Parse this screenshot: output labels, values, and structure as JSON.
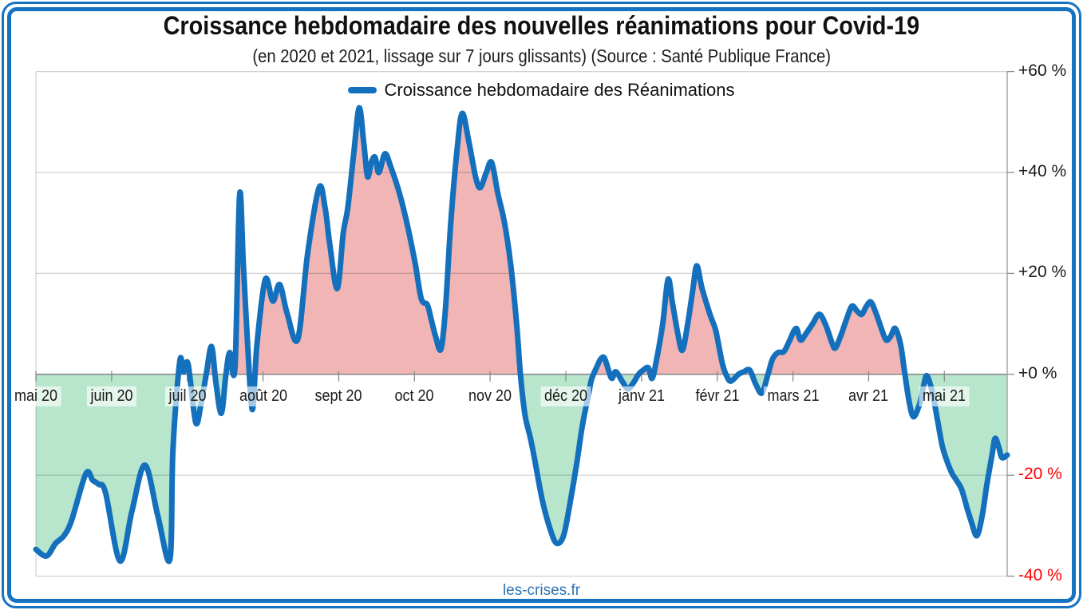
{
  "chart": {
    "title": "Croissance hebdomadaire des nouvelles réanimations pour Covid-19",
    "subtitle": "(en 2020 et 2021, lissage sur 7 jours glissants) (Source : Santé Publique France)",
    "legend_label": "Croissance hebdomadaire des Réanimations",
    "footer": "les-crises.fr"
  },
  "colors": {
    "line": "#1470BC",
    "fill_above_zero": "#F0B5B4",
    "fill_below_zero": "#B7E6CD",
    "frame_blue": "#1573C2",
    "negative_tick_label": "#FF0000",
    "positive_tick_label": "#1a1a1a",
    "footer_text": "#2E74B5"
  },
  "chart_data": {
    "type": "line",
    "title": "Croissance hebdomadaire des nouvelles réanimations pour Covid-19",
    "subtitle": "(en 2020 et 2021, lissage sur 7 jours glissants) (Source : Santé Publique France)",
    "x_unit": "months since 2020-05-01",
    "xlim": [
      0,
      12.83
    ],
    "ylim": [
      -40,
      60
    ],
    "grid": true,
    "legend_position": "top-center",
    "x_tick_labels": [
      "mai 20",
      "juin 20",
      "juil 20",
      "août 20",
      "sept 20",
      "oct 20",
      "nov 20",
      "déc 20",
      "janv 21",
      "févr 21",
      "mars 21",
      "avr 21",
      "mai 21"
    ],
    "y_ticks": [
      {
        "value": 60,
        "label": "+60 %"
      },
      {
        "value": 40,
        "label": "+40 %"
      },
      {
        "value": 20,
        "label": "+20 %"
      },
      {
        "value": 0,
        "label": "+0 %"
      },
      {
        "value": -20,
        "label": "-20 %"
      },
      {
        "value": -40,
        "label": "-40 %"
      }
    ],
    "series": [
      {
        "name": "Croissance hebdomadaire des Réanimations",
        "unit": "percent",
        "points": [
          [
            0,
            -34.7
          ],
          [
            0.14,
            -36
          ],
          [
            0.26,
            -33.5
          ],
          [
            0.37,
            -32
          ],
          [
            0.47,
            -29
          ],
          [
            0.66,
            -19.7
          ],
          [
            0.75,
            -21
          ],
          [
            0.83,
            -21.8
          ],
          [
            0.92,
            -23.5
          ],
          [
            1.11,
            -37
          ],
          [
            1.27,
            -27
          ],
          [
            1.44,
            -18
          ],
          [
            1.61,
            -28
          ],
          [
            1.77,
            -36.7
          ],
          [
            1.81,
            -15
          ],
          [
            1.9,
            2.5
          ],
          [
            1.95,
            0.5
          ],
          [
            2.01,
            2
          ],
          [
            2.11,
            -9.5
          ],
          [
            2.18,
            -6
          ],
          [
            2.25,
            0
          ],
          [
            2.32,
            5.5
          ],
          [
            2.38,
            -2
          ],
          [
            2.45,
            -7.7
          ],
          [
            2.51,
            0
          ],
          [
            2.56,
            4.3
          ],
          [
            2.63,
            1.5
          ],
          [
            2.69,
            35.5
          ],
          [
            2.74,
            22
          ],
          [
            2.8,
            5
          ],
          [
            2.86,
            -7
          ],
          [
            2.92,
            6
          ],
          [
            3.03,
            18.8
          ],
          [
            3.13,
            14.5
          ],
          [
            3.22,
            17.8
          ],
          [
            3.32,
            12
          ],
          [
            3.46,
            7
          ],
          [
            3.59,
            24
          ],
          [
            3.74,
            37
          ],
          [
            3.82,
            33
          ],
          [
            3.88,
            26
          ],
          [
            3.98,
            17
          ],
          [
            4.06,
            28
          ],
          [
            4.12,
            33
          ],
          [
            4.2,
            44
          ],
          [
            4.27,
            52.8
          ],
          [
            4.33,
            46
          ],
          [
            4.38,
            39.2
          ],
          [
            4.43,
            42
          ],
          [
            4.48,
            43
          ],
          [
            4.53,
            40
          ],
          [
            4.61,
            43.7
          ],
          [
            4.69,
            41
          ],
          [
            4.8,
            36
          ],
          [
            4.9,
            30
          ],
          [
            5.01,
            22
          ],
          [
            5.09,
            15
          ],
          [
            5.17,
            13.8
          ],
          [
            5.22,
            11
          ],
          [
            5.28,
            7.5
          ],
          [
            5.35,
            5
          ],
          [
            5.41,
            13
          ],
          [
            5.48,
            30
          ],
          [
            5.56,
            44
          ],
          [
            5.63,
            51.7
          ],
          [
            5.72,
            46
          ],
          [
            5.81,
            39
          ],
          [
            5.87,
            37
          ],
          [
            5.95,
            40
          ],
          [
            6.02,
            42
          ],
          [
            6.1,
            36
          ],
          [
            6.19,
            30
          ],
          [
            6.27,
            22
          ],
          [
            6.35,
            10
          ],
          [
            6.4,
            0
          ],
          [
            6.46,
            -8
          ],
          [
            6.53,
            -12.5
          ],
          [
            6.59,
            -17
          ],
          [
            6.69,
            -25
          ],
          [
            6.8,
            -31
          ],
          [
            6.88,
            -33.5
          ],
          [
            6.97,
            -32
          ],
          [
            7.05,
            -26
          ],
          [
            7.14,
            -18
          ],
          [
            7.22,
            -10
          ],
          [
            7.3,
            -4
          ],
          [
            7.34,
            -1
          ],
          [
            7.41,
            1.5
          ],
          [
            7.46,
            3
          ],
          [
            7.51,
            3.2
          ],
          [
            7.57,
            0.5
          ],
          [
            7.61,
            -0.8
          ],
          [
            7.66,
            0.5
          ],
          [
            7.75,
            -1.5
          ],
          [
            7.82,
            -2.9
          ],
          [
            7.9,
            -1.5
          ],
          [
            7.96,
            0
          ],
          [
            8.02,
            0.8
          ],
          [
            8.09,
            1.3
          ],
          [
            8.14,
            -0.8
          ],
          [
            8.2,
            3
          ],
          [
            8.28,
            10
          ],
          [
            8.35,
            18.8
          ],
          [
            8.41,
            14
          ],
          [
            8.48,
            8
          ],
          [
            8.54,
            4.8
          ],
          [
            8.61,
            10
          ],
          [
            8.68,
            17
          ],
          [
            8.73,
            21.5
          ],
          [
            8.8,
            17
          ],
          [
            8.91,
            11.6
          ],
          [
            8.98,
            8.7
          ],
          [
            9.07,
            2
          ],
          [
            9.14,
            -0.8
          ],
          [
            9.19,
            -1.3
          ],
          [
            9.28,
            0
          ],
          [
            9.35,
            0.5
          ],
          [
            9.43,
            0.8
          ],
          [
            9.51,
            -2
          ],
          [
            9.59,
            -3.7
          ],
          [
            9.67,
            0
          ],
          [
            9.73,
            3
          ],
          [
            9.8,
            4.3
          ],
          [
            9.88,
            4.5
          ],
          [
            9.95,
            6.5
          ],
          [
            10.04,
            9.1
          ],
          [
            10.1,
            6.8
          ],
          [
            10.17,
            8
          ],
          [
            10.26,
            10
          ],
          [
            10.35,
            11.9
          ],
          [
            10.44,
            9.5
          ],
          [
            10.51,
            6.5
          ],
          [
            10.56,
            5.2
          ],
          [
            10.64,
            8
          ],
          [
            10.71,
            11
          ],
          [
            10.78,
            13.5
          ],
          [
            10.85,
            12.5
          ],
          [
            10.91,
            11.9
          ],
          [
            10.97,
            13.5
          ],
          [
            11.03,
            14.3
          ],
          [
            11.1,
            12
          ],
          [
            11.17,
            9
          ],
          [
            11.23,
            6.8
          ],
          [
            11.29,
            7.5
          ],
          [
            11.35,
            9.1
          ],
          [
            11.42,
            6
          ],
          [
            11.47,
            1
          ],
          [
            11.53,
            -5
          ],
          [
            11.59,
            -8.4
          ],
          [
            11.67,
            -6
          ],
          [
            11.73,
            -2
          ],
          [
            11.77,
            -0.3
          ],
          [
            11.84,
            -3.5
          ],
          [
            11.91,
            -9.1
          ],
          [
            11.97,
            -14
          ],
          [
            12.03,
            -17
          ],
          [
            12.1,
            -19.6
          ],
          [
            12.16,
            -21
          ],
          [
            12.23,
            -22.9
          ],
          [
            12.3,
            -26.5
          ],
          [
            12.36,
            -29.4
          ],
          [
            12.43,
            -32
          ],
          [
            12.5,
            -28
          ],
          [
            12.56,
            -22
          ],
          [
            12.63,
            -16
          ],
          [
            12.67,
            -12.7
          ],
          [
            12.72,
            -14.5
          ],
          [
            12.76,
            -16.5
          ],
          [
            12.83,
            -16
          ]
        ]
      }
    ]
  }
}
